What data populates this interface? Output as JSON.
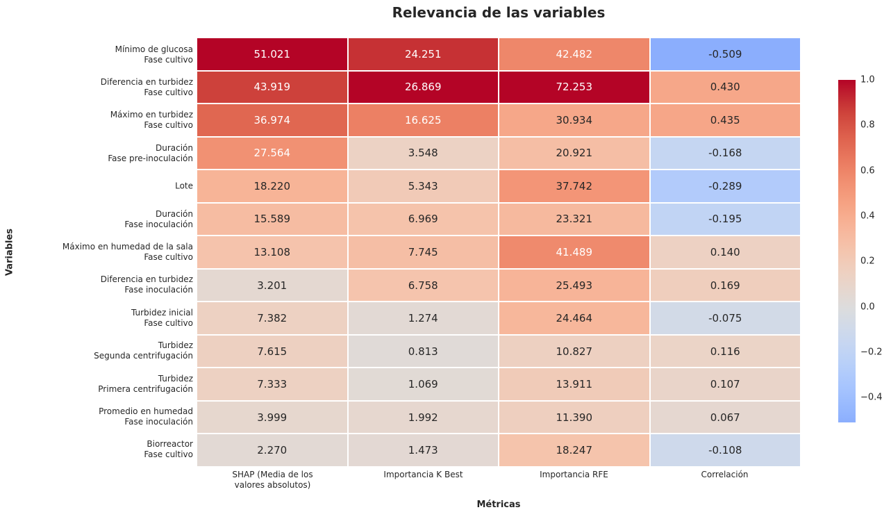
{
  "title": "Relevancia de las variables",
  "x_axis_label": "Métricas",
  "y_axis_label": "Variables",
  "colorbar": {
    "tick_labels": [
      "1.0",
      "0.8",
      "0.6",
      "0.4",
      "0.2",
      "0.0",
      "−0.2",
      "−0.4"
    ],
    "tick_values": [
      1.0,
      0.8,
      0.6,
      0.4,
      0.2,
      0.0,
      -0.2,
      -0.4
    ],
    "vmin": -0.509,
    "vmax": 1.0,
    "top_color": "#b40426",
    "bottom_color": "#8baefd",
    "position": "right"
  },
  "chart_data": {
    "type": "heatmap",
    "title": "Relevancia de las variables",
    "xlabel": "Métricas",
    "ylabel": "Variables",
    "columns": [
      [
        "SHAP (Media de los",
        "valores absolutos)"
      ],
      [
        "Importancia K Best"
      ],
      [
        "Importancia RFE"
      ],
      [
        "Correlación"
      ]
    ],
    "rows": [
      [
        "Mínimo de glucosa",
        "Fase cultivo"
      ],
      [
        "Diferencia en turbidez",
        "Fase cultivo"
      ],
      [
        "Máximo en turbidez",
        "Fase cultivo"
      ],
      [
        "Duración",
        "Fase pre-inoculación"
      ],
      [
        "Lote"
      ],
      [
        "Duración",
        "Fase inoculación"
      ],
      [
        "Máximo en humedad de la sala",
        "Fase cultivo"
      ],
      [
        "Diferencia en turbidez",
        "Fase inoculación"
      ],
      [
        "Turbidez inicial",
        "Fase cultivo"
      ],
      [
        "Turbidez",
        "Segunda centrifugación"
      ],
      [
        "Turbidez",
        "Primera centrifugación"
      ],
      [
        "Promedio en humedad",
        "Fase inoculación"
      ],
      [
        "Biorreactor",
        "Fase cultivo"
      ]
    ],
    "values": [
      [
        51.021,
        24.251,
        42.482,
        -0.509
      ],
      [
        43.919,
        26.869,
        72.253,
        0.43
      ],
      [
        36.974,
        16.625,
        30.934,
        0.435
      ],
      [
        27.564,
        3.548,
        20.921,
        -0.168
      ],
      [
        18.22,
        5.343,
        37.742,
        -0.289
      ],
      [
        15.589,
        6.969,
        23.321,
        -0.195
      ],
      [
        13.108,
        7.745,
        41.489,
        0.14
      ],
      [
        3.201,
        6.758,
        25.493,
        0.169
      ],
      [
        7.382,
        1.274,
        24.464,
        -0.075
      ],
      [
        7.615,
        0.813,
        10.827,
        0.116
      ],
      [
        7.333,
        1.069,
        13.911,
        0.107
      ],
      [
        3.999,
        1.992,
        11.39,
        0.067
      ],
      [
        2.27,
        1.473,
        18.247,
        -0.108
      ]
    ],
    "value_decimals": 3,
    "colormap": "coolwarm",
    "column_color_scaling": [
      "max",
      "max",
      "max",
      "raw"
    ],
    "colorbar_range": [
      -0.509,
      1.0
    ],
    "grid": "white cell separators",
    "legend_position": "colorbar-right"
  }
}
